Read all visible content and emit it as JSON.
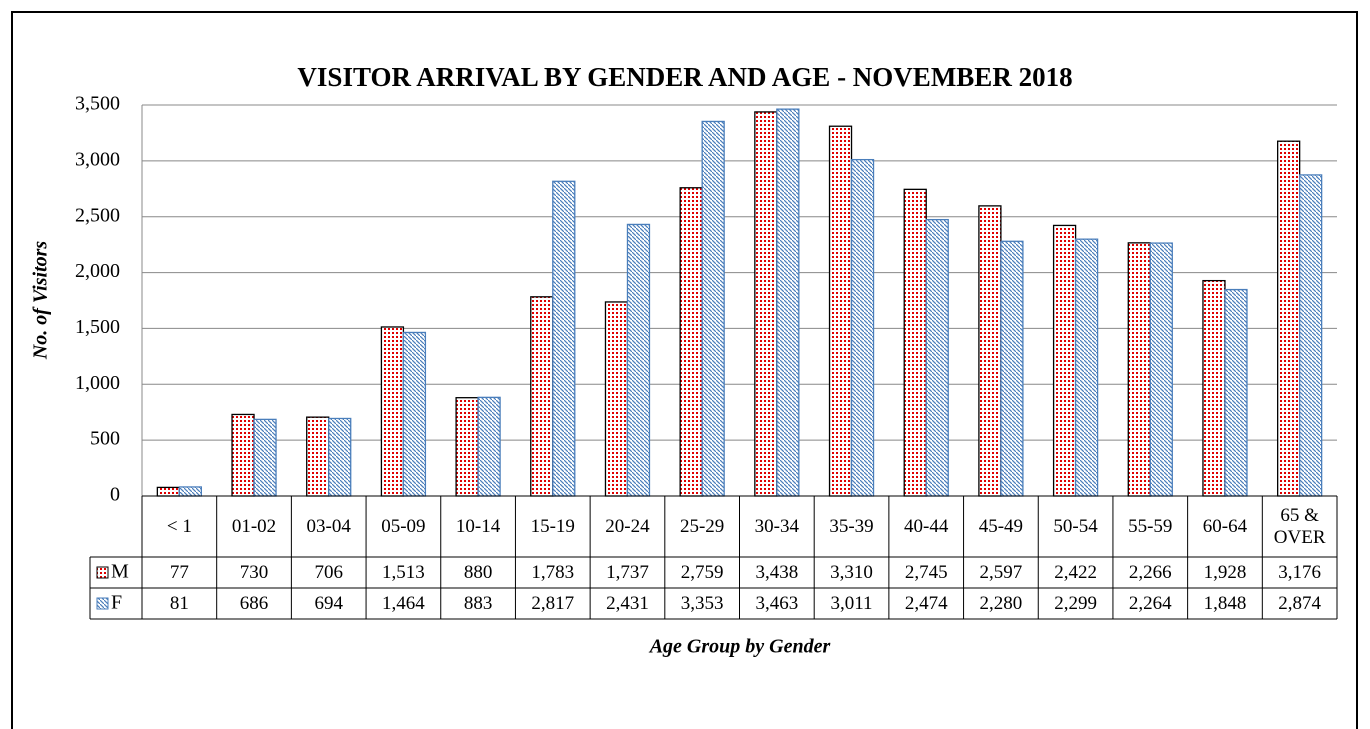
{
  "chart_data": {
    "type": "bar",
    "title": "VISITOR ARRIVAL BY GENDER AND AGE - NOVEMBER  2018",
    "y_label": "No. of Visitors",
    "x_label": "Age Group by Gender",
    "categories": [
      "< 1",
      "01-02",
      "03-04",
      "05-09",
      "10-14",
      "15-19",
      "20-24",
      "25-29",
      "30-34",
      "35-39",
      "40-44",
      "45-49",
      "50-54",
      "55-59",
      "60-64",
      "65 & OVER"
    ],
    "series": [
      {
        "name": "M",
        "color": "#e00000",
        "values": [
          77,
          730,
          706,
          1513,
          880,
          1783,
          1737,
          2759,
          3438,
          3310,
          2745,
          2597,
          2422,
          2266,
          1928,
          3176
        ],
        "value_labels": [
          "77",
          "730",
          "706",
          "1,513",
          "880",
          "1,783",
          "1,737",
          "2,759",
          "3,438",
          "3,310",
          "2,745",
          "2,597",
          "2,422",
          "2,266",
          "1,928",
          "3,176"
        ]
      },
      {
        "name": "F",
        "color": "#4a7ebb",
        "values": [
          81,
          686,
          694,
          1464,
          883,
          2817,
          2431,
          3353,
          3463,
          3011,
          2474,
          2280,
          2299,
          2264,
          1848,
          2874
        ],
        "value_labels": [
          "81",
          "686",
          "694",
          "1,464",
          "883",
          "2,817",
          "2,431",
          "3,353",
          "3,463",
          "3,011",
          "2,474",
          "2,280",
          "2,299",
          "2,264",
          "1,848",
          "2,874"
        ]
      }
    ],
    "ylim": [
      0,
      3500
    ],
    "yticks": [
      0,
      500,
      {
        "value": 1000,
        "label": "1,000"
      },
      {
        "value": 1500,
        "label": "1,500"
      },
      {
        "value": 2000,
        "label": "2,000"
      },
      {
        "value": 2500,
        "label": "2,500"
      },
      {
        "value": 3000,
        "label": "3,000"
      },
      {
        "value": 3500,
        "label": "3,500"
      }
    ],
    "grid": true
  }
}
